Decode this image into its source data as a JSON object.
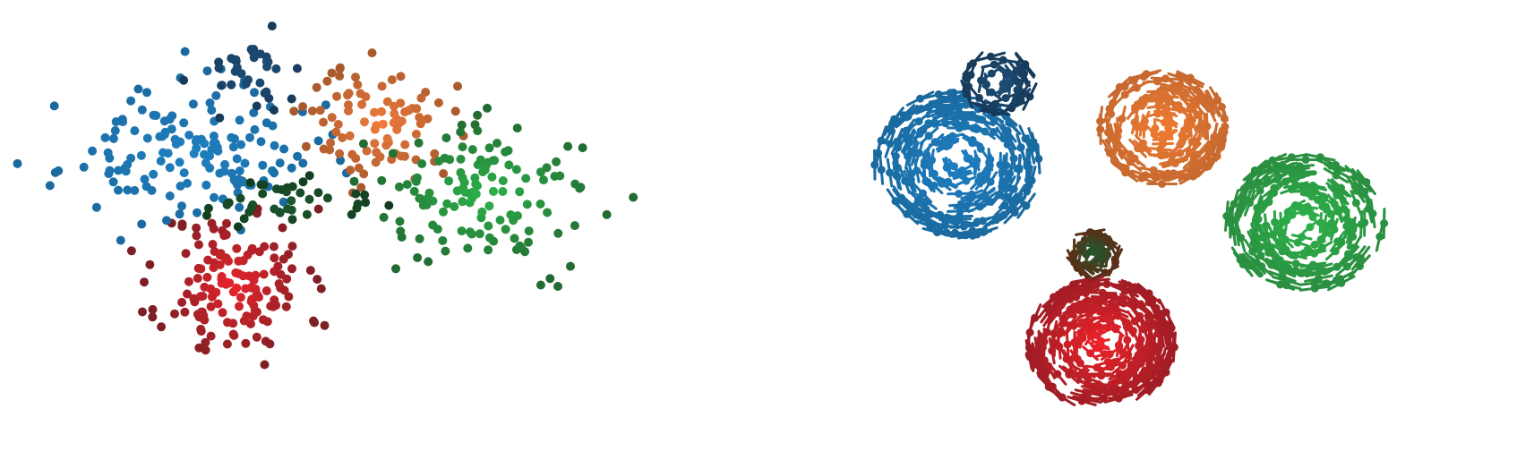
{
  "chart_data": [
    {
      "type": "scatter",
      "title": "",
      "xlabel": "",
      "ylabel": "",
      "axes_visible": false,
      "grid": false,
      "legend": "none",
      "xlim": [
        0,
        1
      ],
      "ylim": [
        0,
        1
      ],
      "clusters": [
        {
          "center": [
            0.34,
            0.38
          ],
          "spread": [
            0.055,
            0.085
          ],
          "inner_color": "#e8242c",
          "outer_color": "#7e1f24",
          "count": 150,
          "seed": 11
        },
        {
          "center": [
            0.27,
            0.67
          ],
          "spread": [
            0.095,
            0.075
          ],
          "inner_color": "#1f80c0",
          "outer_color": "#1a6aa0",
          "count": 150,
          "seed": 23
        },
        {
          "center": [
            0.56,
            0.74
          ],
          "spread": [
            0.055,
            0.065
          ],
          "inner_color": "#f07a3a",
          "outer_color": "#a85a2e",
          "count": 90,
          "seed": 37
        },
        {
          "center": [
            0.72,
            0.58
          ],
          "spread": [
            0.085,
            0.08
          ],
          "inner_color": "#2db24a",
          "outer_color": "#226b32",
          "count": 130,
          "seed": 41
        },
        {
          "center": [
            0.37,
            0.86
          ],
          "spread": [
            0.04,
            0.045
          ],
          "inner_color": "#1e4f78",
          "outer_color": "#163a5a",
          "count": 35,
          "seed": 53
        },
        {
          "center": [
            0.42,
            0.56
          ],
          "spread": [
            0.07,
            0.025
          ],
          "inner_color": "#1d5a2e",
          "outer_color": "#123d20",
          "count": 40,
          "seed": 67
        }
      ]
    },
    {
      "type": "scatter",
      "title": "",
      "xlabel": "",
      "ylabel": "",
      "axes_visible": false,
      "grid": false,
      "legend": "none",
      "xlim": [
        0,
        1
      ],
      "ylim": [
        0,
        1
      ],
      "marker": "point-with-tangent-segment",
      "clusters": [
        {
          "center": [
            0.46,
            0.25
          ],
          "radius": 0.15,
          "inner_color": "#ee2228",
          "outer_color": "#a11d25",
          "count": 260,
          "seed": 71
        },
        {
          "center": [
            0.25,
            0.65
          ],
          "radius": 0.17,
          "inner_color": "#1e7fc1",
          "outer_color": "#1a6aa0",
          "count": 220,
          "seed": 83
        },
        {
          "center": [
            0.55,
            0.73
          ],
          "radius": 0.13,
          "inner_color": "#f07a30",
          "outer_color": "#c86a30",
          "count": 160,
          "seed": 97
        },
        {
          "center": [
            0.76,
            0.52
          ],
          "radius": 0.16,
          "inner_color": "#2db24a",
          "outer_color": "#2a8f40",
          "count": 200,
          "seed": 101
        },
        {
          "center": [
            0.31,
            0.83
          ],
          "radius": 0.07,
          "inner_color": "#1e4f78",
          "outer_color": "#163a5a",
          "count": 40,
          "seed": 113
        },
        {
          "center": [
            0.45,
            0.45
          ],
          "radius": 0.05,
          "inner_color": "#1d5a2e",
          "outer_color": "#5a2e18",
          "count": 40,
          "seed": 127
        }
      ]
    }
  ]
}
